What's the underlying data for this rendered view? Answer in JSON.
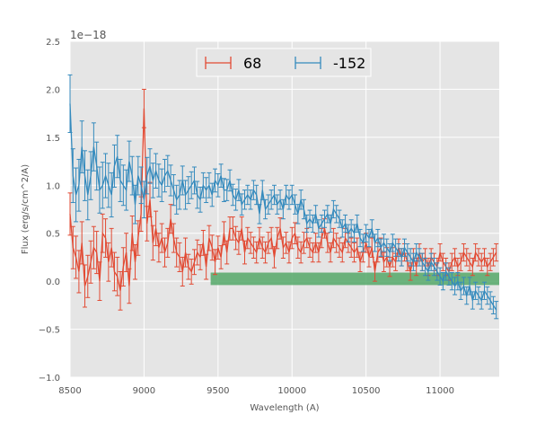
{
  "chart_data": {
    "type": "line",
    "title": "",
    "xlabel": "Wavelength (A)",
    "ylabel": "Flux (erg/s/cm^2/A)",
    "offset_text": "1e−18",
    "xlim": [
      8500,
      11400
    ],
    "ylim": [
      -1.0,
      2.5
    ],
    "grid": true,
    "legend_position": "top-center",
    "xticks": [
      8500,
      9000,
      9500,
      10000,
      10500,
      11000
    ],
    "yticks": [
      -1.0,
      -0.5,
      0.0,
      0.5,
      1.0,
      1.5,
      2.0,
      2.5
    ],
    "xtick_labels": [
      "8500",
      "9000",
      "9500",
      "10000",
      "10500",
      "11000"
    ],
    "ytick_labels": [
      "−1.0",
      "−0.5",
      "0.0",
      "0.5",
      "1.0",
      "1.5",
      "2.0",
      "2.5"
    ],
    "band": {
      "x": [
        9450,
        11400
      ],
      "y": [
        -0.04,
        0.09
      ],
      "color": "#55a868"
    },
    "series": [
      {
        "name": "68",
        "color": "#e24a33",
        "x": [
          8500,
          8520,
          8540,
          8560,
          8580,
          8600,
          8620,
          8640,
          8660,
          8680,
          8700,
          8720,
          8740,
          8760,
          8780,
          8800,
          8820,
          8840,
          8860,
          8880,
          8900,
          8920,
          8940,
          8960,
          8980,
          9000,
          9020,
          9040,
          9060,
          9080,
          9100,
          9120,
          9140,
          9160,
          9180,
          9200,
          9220,
          9240,
          9260,
          9280,
          9300,
          9320,
          9340,
          9360,
          9380,
          9400,
          9420,
          9440,
          9460,
          9480,
          9500,
          9520,
          9540,
          9560,
          9580,
          9600,
          9620,
          9640,
          9660,
          9680,
          9700,
          9720,
          9740,
          9760,
          9780,
          9800,
          9820,
          9840,
          9860,
          9880,
          9900,
          9920,
          9940,
          9960,
          9980,
          10000,
          10020,
          10040,
          10060,
          10080,
          10100,
          10120,
          10140,
          10160,
          10180,
          10200,
          10220,
          10240,
          10260,
          10280,
          10300,
          10320,
          10340,
          10360,
          10380,
          10400,
          10420,
          10440,
          10460,
          10480,
          10500,
          10520,
          10540,
          10560,
          10580,
          10600,
          10620,
          10640,
          10660,
          10680,
          10700,
          10720,
          10740,
          10760,
          10780,
          10800,
          10820,
          10840,
          10860,
          10880,
          10900,
          10920,
          10940,
          10960,
          10980,
          11000,
          11020,
          11040,
          11060,
          11080,
          11100,
          11120,
          11140,
          11160,
          11180,
          11200,
          11220,
          11240,
          11260,
          11280,
          11300,
          11320,
          11340,
          11360,
          11380
        ],
        "y": [
          0.7,
          0.35,
          0.25,
          0.1,
          0.4,
          -0.05,
          0.05,
          0.2,
          0.35,
          0.3,
          0.0,
          0.5,
          0.45,
          0.2,
          0.35,
          0.1,
          0.05,
          -0.1,
          0.15,
          0.3,
          -0.05,
          0.5,
          0.2,
          0.45,
          0.7,
          1.8,
          0.6,
          0.85,
          0.4,
          0.55,
          0.35,
          0.45,
          0.3,
          0.4,
          0.65,
          0.45,
          0.3,
          0.25,
          0.1,
          0.3,
          0.15,
          0.1,
          0.2,
          0.3,
          0.25,
          0.4,
          0.15,
          0.45,
          0.35,
          0.2,
          0.35,
          0.25,
          0.5,
          0.3,
          0.55,
          0.55,
          0.45,
          0.4,
          0.55,
          0.3,
          0.45,
          0.4,
          0.35,
          0.3,
          0.45,
          0.35,
          0.3,
          0.4,
          0.45,
          0.25,
          0.45,
          0.55,
          0.35,
          0.4,
          0.3,
          0.45,
          0.5,
          0.35,
          0.3,
          0.4,
          0.45,
          0.35,
          0.3,
          0.4,
          0.3,
          0.45,
          0.55,
          0.4,
          0.3,
          0.45,
          0.4,
          0.35,
          0.3,
          0.45,
          0.4,
          0.35,
          0.3,
          0.35,
          0.2,
          0.3,
          0.4,
          0.25,
          0.35,
          0.1,
          0.3,
          0.35,
          0.2,
          0.25,
          0.15,
          0.25,
          0.2,
          0.35,
          0.25,
          0.3,
          0.2,
          0.1,
          0.25,
          0.15,
          0.3,
          0.2,
          0.25,
          0.15,
          0.25,
          0.2,
          0.15,
          0.3,
          0.2,
          0.15,
          0.1,
          0.2,
          0.25,
          0.15,
          0.2,
          0.3,
          0.25,
          0.2,
          0.15,
          0.3,
          0.25,
          0.2,
          0.25,
          0.15,
          0.2,
          0.25,
          0.3
        ],
        "err": [
          0.22,
          0.22,
          0.22,
          0.22,
          0.22,
          0.22,
          0.22,
          0.22,
          0.22,
          0.22,
          0.2,
          0.2,
          0.2,
          0.2,
          0.2,
          0.2,
          0.2,
          0.2,
          0.2,
          0.2,
          0.18,
          0.18,
          0.18,
          0.18,
          0.18,
          0.2,
          0.18,
          0.18,
          0.18,
          0.18,
          0.15,
          0.15,
          0.15,
          0.15,
          0.15,
          0.15,
          0.15,
          0.15,
          0.15,
          0.15,
          0.13,
          0.13,
          0.13,
          0.13,
          0.13,
          0.13,
          0.13,
          0.13,
          0.13,
          0.13,
          0.12,
          0.12,
          0.12,
          0.12,
          0.12,
          0.12,
          0.12,
          0.12,
          0.12,
          0.12,
          0.11,
          0.11,
          0.11,
          0.11,
          0.11,
          0.11,
          0.11,
          0.11,
          0.11,
          0.11,
          0.11,
          0.11,
          0.11,
          0.11,
          0.11,
          0.11,
          0.11,
          0.11,
          0.11,
          0.11,
          0.1,
          0.1,
          0.1,
          0.1,
          0.1,
          0.1,
          0.1,
          0.1,
          0.1,
          0.1,
          0.1,
          0.1,
          0.1,
          0.1,
          0.1,
          0.1,
          0.1,
          0.1,
          0.1,
          0.1,
          0.1,
          0.1,
          0.1,
          0.1,
          0.1,
          0.1,
          0.1,
          0.1,
          0.1,
          0.1,
          0.09,
          0.09,
          0.09,
          0.09,
          0.09,
          0.09,
          0.09,
          0.09,
          0.09,
          0.09,
          0.09,
          0.09,
          0.09,
          0.09,
          0.09,
          0.09,
          0.09,
          0.09,
          0.09,
          0.09,
          0.09,
          0.09,
          0.09,
          0.09,
          0.09,
          0.09,
          0.09,
          0.09,
          0.09,
          0.09,
          0.09,
          0.09,
          0.09,
          0.09,
          0.09
        ]
      },
      {
        "name": "-152",
        "color": "#348abd",
        "x": [
          8500,
          8520,
          8540,
          8560,
          8580,
          8600,
          8620,
          8640,
          8660,
          8680,
          8700,
          8720,
          8740,
          8760,
          8780,
          8800,
          8820,
          8840,
          8860,
          8880,
          8900,
          8920,
          8940,
          8960,
          8980,
          9000,
          9020,
          9040,
          9060,
          9080,
          9100,
          9120,
          9140,
          9160,
          9180,
          9200,
          9220,
          9240,
          9260,
          9280,
          9300,
          9320,
          9340,
          9360,
          9380,
          9400,
          9420,
          9440,
          9460,
          9480,
          9500,
          9520,
          9540,
          9560,
          9580,
          9600,
          9620,
          9640,
          9660,
          9680,
          9700,
          9720,
          9740,
          9760,
          9780,
          9800,
          9820,
          9840,
          9860,
          9880,
          9900,
          9920,
          9940,
          9960,
          9980,
          10000,
          10020,
          10040,
          10060,
          10080,
          10100,
          10120,
          10140,
          10160,
          10180,
          10200,
          10220,
          10240,
          10260,
          10280,
          10300,
          10320,
          10340,
          10360,
          10380,
          10400,
          10420,
          10440,
          10460,
          10480,
          10500,
          10520,
          10540,
          10560,
          10580,
          10600,
          10620,
          10640,
          10660,
          10680,
          10700,
          10720,
          10740,
          10760,
          10780,
          10800,
          10820,
          10840,
          10860,
          10880,
          10900,
          10920,
          10940,
          10960,
          10980,
          11000,
          11020,
          11040,
          11060,
          11080,
          11100,
          11120,
          11140,
          11160,
          11180,
          11200,
          11220,
          11240,
          11260,
          11280,
          11300,
          11320,
          11340,
          11360,
          11380
        ],
        "y": [
          1.85,
          1.1,
          0.9,
          1.0,
          1.4,
          1.1,
          0.9,
          1.1,
          1.4,
          1.2,
          0.95,
          1.0,
          1.1,
          1.0,
          0.9,
          1.2,
          1.3,
          1.05,
          1.0,
          0.95,
          1.25,
          1.1,
          0.8,
          1.1,
          1.0,
          0.85,
          1.1,
          1.2,
          1.05,
          1.15,
          1.05,
          1.0,
          1.1,
          1.15,
          1.05,
          0.95,
          0.85,
          0.9,
          1.05,
          0.9,
          0.95,
          1.0,
          1.05,
          0.9,
          0.85,
          1.0,
          0.95,
          1.0,
          0.9,
          1.05,
          1.0,
          1.1,
          0.95,
          0.95,
          1.05,
          0.9,
          0.85,
          0.95,
          0.8,
          0.85,
          0.9,
          0.85,
          0.95,
          0.9,
          0.7,
          0.95,
          0.75,
          0.8,
          0.85,
          0.9,
          0.8,
          0.85,
          0.75,
          0.9,
          0.85,
          0.9,
          0.8,
          0.7,
          0.85,
          0.75,
          0.6,
          0.65,
          0.6,
          0.7,
          0.55,
          0.6,
          0.65,
          0.7,
          0.6,
          0.75,
          0.7,
          0.65,
          0.55,
          0.6,
          0.5,
          0.55,
          0.5,
          0.6,
          0.45,
          0.4,
          0.5,
          0.45,
          0.55,
          0.4,
          0.45,
          0.35,
          0.4,
          0.35,
          0.3,
          0.4,
          0.35,
          0.3,
          0.25,
          0.35,
          0.3,
          0.25,
          0.2,
          0.3,
          0.25,
          0.2,
          0.15,
          0.1,
          0.2,
          0.15,
          0.1,
          0.05,
          0.0,
          0.1,
          0.05,
          0.0,
          -0.05,
          0.0,
          -0.1,
          -0.05,
          -0.15,
          -0.05,
          -0.2,
          -0.1,
          -0.15,
          -0.2,
          -0.1,
          -0.15,
          -0.2,
          -0.25,
          -0.3
        ],
        "err": [
          0.3,
          0.28,
          0.28,
          0.27,
          0.27,
          0.26,
          0.26,
          0.25,
          0.25,
          0.25,
          0.24,
          0.24,
          0.23,
          0.23,
          0.23,
          0.22,
          0.22,
          0.22,
          0.21,
          0.21,
          0.21,
          0.2,
          0.2,
          0.2,
          0.19,
          0.19,
          0.19,
          0.18,
          0.18,
          0.18,
          0.17,
          0.17,
          0.17,
          0.16,
          0.16,
          0.16,
          0.15,
          0.15,
          0.15,
          0.15,
          0.14,
          0.14,
          0.14,
          0.14,
          0.13,
          0.13,
          0.13,
          0.13,
          0.12,
          0.12,
          0.12,
          0.12,
          0.12,
          0.11,
          0.11,
          0.11,
          0.11,
          0.11,
          0.11,
          0.1,
          0.1,
          0.1,
          0.1,
          0.1,
          0.1,
          0.1,
          0.1,
          0.1,
          0.1,
          0.1,
          0.1,
          0.1,
          0.1,
          0.1,
          0.1,
          0.1,
          0.1,
          0.1,
          0.1,
          0.1,
          0.09,
          0.09,
          0.09,
          0.09,
          0.09,
          0.09,
          0.09,
          0.09,
          0.09,
          0.09,
          0.09,
          0.09,
          0.09,
          0.09,
          0.09,
          0.09,
          0.09,
          0.09,
          0.09,
          0.09,
          0.09,
          0.09,
          0.09,
          0.09,
          0.09,
          0.09,
          0.09,
          0.09,
          0.09,
          0.09,
          0.09,
          0.09,
          0.09,
          0.09,
          0.09,
          0.09,
          0.09,
          0.09,
          0.09,
          0.09,
          0.09,
          0.09,
          0.09,
          0.09,
          0.09,
          0.09,
          0.09,
          0.09,
          0.09,
          0.09,
          0.09,
          0.09,
          0.09,
          0.09,
          0.09,
          0.09,
          0.09,
          0.09,
          0.09,
          0.09,
          0.09,
          0.09,
          0.09,
          0.09,
          0.09
        ]
      }
    ]
  }
}
